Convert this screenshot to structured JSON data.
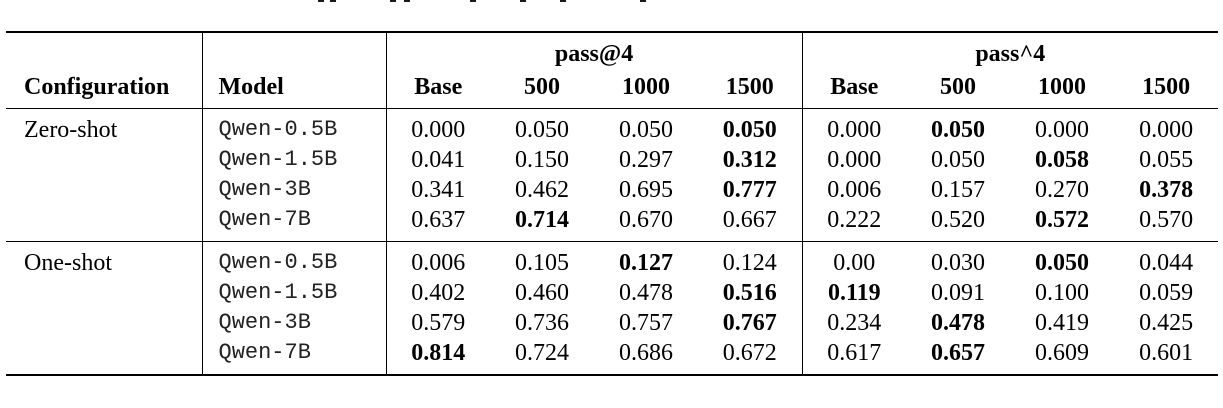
{
  "table": {
    "group_headers": {
      "left": "pass@4",
      "right": "pass^4"
    },
    "column_headers": [
      "Configuration",
      "Model",
      "Base",
      "500",
      "1000",
      "1500",
      "Base",
      "500",
      "1000",
      "1500"
    ],
    "sections": [
      {
        "configuration": "Zero-shot",
        "rows": [
          {
            "model": "Qwen-0.5B",
            "values": [
              "0.000",
              "0.050",
              "0.050",
              "0.050",
              "0.000",
              "0.050",
              "0.000",
              "0.000"
            ],
            "bold": [
              false,
              false,
              false,
              true,
              false,
              true,
              false,
              false
            ]
          },
          {
            "model": "Qwen-1.5B",
            "values": [
              "0.041",
              "0.150",
              "0.297",
              "0.312",
              "0.000",
              "0.050",
              "0.058",
              "0.055"
            ],
            "bold": [
              false,
              false,
              false,
              true,
              false,
              false,
              true,
              false
            ]
          },
          {
            "model": "Qwen-3B",
            "values": [
              "0.341",
              "0.462",
              "0.695",
              "0.777",
              "0.006",
              "0.157",
              "0.270",
              "0.378"
            ],
            "bold": [
              false,
              false,
              false,
              true,
              false,
              false,
              false,
              true
            ]
          },
          {
            "model": "Qwen-7B",
            "values": [
              "0.637",
              "0.714",
              "0.670",
              "0.667",
              "0.222",
              "0.520",
              "0.572",
              "0.570"
            ],
            "bold": [
              false,
              true,
              false,
              false,
              false,
              false,
              true,
              false
            ]
          }
        ]
      },
      {
        "configuration": "One-shot",
        "rows": [
          {
            "model": "Qwen-0.5B",
            "values": [
              "0.006",
              "0.105",
              "0.127",
              "0.124",
              "0.00",
              "0.030",
              "0.050",
              "0.044"
            ],
            "bold": [
              false,
              false,
              true,
              false,
              false,
              false,
              true,
              false
            ]
          },
          {
            "model": "Qwen-1.5B",
            "values": [
              "0.402",
              "0.460",
              "0.478",
              "0.516",
              "0.119",
              "0.091",
              "0.100",
              "0.059"
            ],
            "bold": [
              false,
              false,
              false,
              true,
              true,
              false,
              false,
              false
            ]
          },
          {
            "model": "Qwen-3B",
            "values": [
              "0.579",
              "0.736",
              "0.757",
              "0.767",
              "0.234",
              "0.478",
              "0.419",
              "0.425"
            ],
            "bold": [
              false,
              false,
              false,
              true,
              false,
              true,
              false,
              false
            ]
          },
          {
            "model": "Qwen-7B",
            "values": [
              "0.814",
              "0.724",
              "0.686",
              "0.672",
              "0.617",
              "0.657",
              "0.609",
              "0.601"
            ],
            "bold": [
              true,
              false,
              false,
              false,
              false,
              true,
              false,
              false
            ]
          }
        ]
      }
    ]
  }
}
